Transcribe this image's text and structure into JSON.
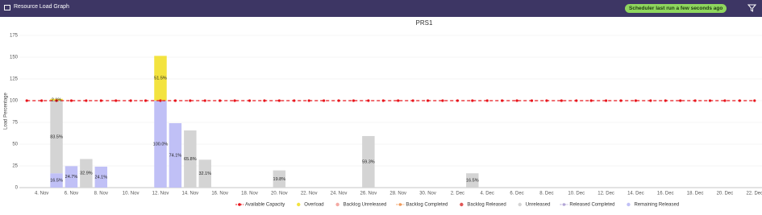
{
  "header": {
    "title": "Resource Load Graph",
    "status": "Scheduler last run a few seconds ago"
  },
  "chart_data": {
    "type": "bar",
    "title": "PRS1",
    "y_label": "Load Percentage",
    "ylim": [
      0,
      175
    ],
    "yticks": [
      0,
      25,
      50,
      75,
      100,
      125,
      150,
      175
    ],
    "grid": true,
    "stacked": true,
    "legend": "bottom",
    "categories": [
      null,
      "4. Nov",
      null,
      "6. Nov",
      null,
      "8. Nov",
      null,
      "10. Nov",
      null,
      "12. Nov",
      null,
      "14. Nov",
      null,
      "16. Nov",
      null,
      "18. Nov",
      null,
      "20. Nov",
      null,
      "22. Nov",
      null,
      "24. Nov",
      null,
      "26. Nov",
      null,
      "28. Nov",
      null,
      "30. Nov",
      null,
      "2. Dec",
      null,
      "4. Dec",
      null,
      "6. Dec",
      null,
      "8. Dec",
      null,
      "10. Dec",
      null,
      "12. Dec",
      null,
      "14. Dec",
      null,
      "16. Dec",
      null,
      "18. Dec",
      null,
      "20. Dec",
      null,
      "22. Dec"
    ],
    "series": [
      {
        "name": "Available Capacity",
        "type": "line",
        "color": "#e8141b",
        "values": [
          100,
          100,
          100,
          100,
          100,
          100,
          100,
          100,
          100,
          100,
          100,
          100,
          100,
          100,
          100,
          100,
          100,
          100,
          100,
          100,
          100,
          100,
          100,
          100,
          100,
          100,
          100,
          100,
          100,
          100,
          100,
          100,
          100,
          100,
          100,
          100,
          100,
          100,
          100,
          100,
          100,
          100,
          100,
          100,
          100,
          100,
          100,
          100,
          100,
          100
        ]
      },
      {
        "name": "Overload",
        "color": "#f3e33f",
        "values": [
          null,
          null,
          2.1,
          null,
          null,
          null,
          null,
          null,
          null,
          51.5,
          null,
          null,
          null,
          null,
          null,
          null,
          null,
          null,
          null,
          null,
          null,
          null,
          null,
          null,
          null,
          null,
          null,
          null,
          null,
          null,
          null,
          null,
          null,
          null,
          null,
          null,
          null,
          null,
          null,
          null,
          null,
          null,
          null,
          null,
          null,
          null,
          null,
          null,
          null,
          null
        ],
        "value_labels": [
          null,
          null,
          "2.1%",
          null,
          null,
          null,
          null,
          null,
          null,
          "51.5%",
          null,
          null,
          null,
          null,
          null,
          null,
          null,
          null,
          null,
          null,
          null,
          null,
          null,
          null,
          null,
          null,
          null,
          null,
          null,
          null,
          null,
          null,
          null,
          null,
          null,
          null,
          null,
          null,
          null,
          null,
          null,
          null,
          null,
          null,
          null,
          null,
          null,
          null,
          null,
          null
        ]
      },
      {
        "name": "Backlog Unreleased",
        "color": "#f4a9a3"
      },
      {
        "name": "Backlog Completed",
        "type": "line",
        "color": "#f09a5a"
      },
      {
        "name": "Backlog Released",
        "color": "#e05555"
      },
      {
        "name": "Unreleased",
        "color": "#d4d4d4",
        "values": [
          null,
          null,
          83.5,
          null,
          32.9,
          null,
          null,
          null,
          null,
          null,
          null,
          65.8,
          32.1,
          null,
          null,
          null,
          null,
          19.8,
          null,
          null,
          null,
          null,
          null,
          59.3,
          null,
          null,
          null,
          null,
          null,
          null,
          16.5,
          null,
          null,
          null,
          null,
          null,
          null,
          null,
          null,
          null,
          null,
          null,
          null,
          null,
          null,
          null,
          null,
          null,
          null,
          null
        ],
        "value_labels": [
          null,
          null,
          "83.5%",
          null,
          "32.9%",
          null,
          null,
          null,
          null,
          null,
          null,
          "65.8%",
          "32.1%",
          null,
          null,
          null,
          null,
          "19.8%",
          null,
          null,
          null,
          null,
          null,
          "59.3%",
          null,
          null,
          null,
          null,
          null,
          null,
          "16.5%",
          null,
          null,
          null,
          null,
          null,
          null,
          null,
          null,
          null,
          null,
          null,
          null,
          null,
          null,
          null,
          null,
          null,
          null,
          null
        ]
      },
      {
        "name": "Released Completed",
        "type": "line",
        "color": "#b3a6d6"
      },
      {
        "name": "Remaining Released",
        "color": "#c0c0f6",
        "values": [
          null,
          null,
          16.5,
          24.7,
          null,
          24.1,
          null,
          null,
          null,
          100.0,
          74.1,
          null,
          null,
          null,
          null,
          null,
          null,
          null,
          null,
          null,
          null,
          null,
          null,
          null,
          null,
          null,
          null,
          null,
          null,
          null,
          null,
          null,
          null,
          null,
          null,
          null,
          null,
          null,
          null,
          null,
          null,
          null,
          null,
          null,
          null,
          null,
          null,
          null,
          null,
          null
        ],
        "value_labels": [
          null,
          null,
          "16.5%",
          "24.7%",
          null,
          "24.1%",
          null,
          null,
          null,
          "100.0%",
          "74.1%",
          null,
          null,
          null,
          null,
          null,
          null,
          null,
          null,
          null,
          null,
          null,
          null,
          null,
          null,
          null,
          null,
          null,
          null,
          null,
          null,
          null,
          null,
          null,
          null,
          null,
          null,
          null,
          null,
          null,
          null,
          null,
          null,
          null,
          null,
          null,
          null,
          null,
          null,
          null
        ]
      }
    ]
  }
}
